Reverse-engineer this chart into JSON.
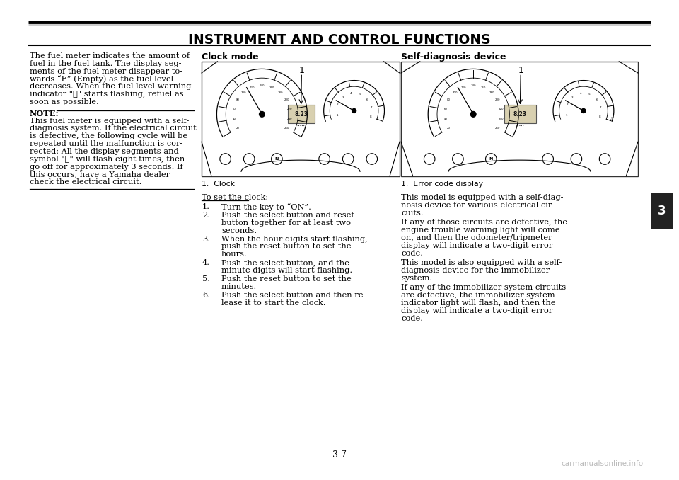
{
  "bg_color": "#ffffff",
  "title": "INSTRUMENT AND CONTROL FUNCTIONS",
  "page_number": "3-7",
  "chapter_number": "3",
  "left_lines_1": [
    "The fuel meter indicates the amount of",
    "fuel in the fuel tank. The display seg-",
    "ments of the fuel meter disappear to-",
    "wards “E” (Empty) as the fuel level",
    "decreases. When the fuel level warning",
    "indicator \"⛽\" starts flashing, refuel as",
    "soon as possible."
  ],
  "left_note_label": "NOTE:",
  "left_lines_2": [
    "This fuel meter is equipped with a self-",
    "diagnosis system. If the electrical circuit",
    "is defective, the following cycle will be",
    "repeated until the malfunction is cor-",
    "rected: All the display segments and",
    "symbol \"⛽\" will flash eight times, then",
    "go off for approximately 3 seconds. If",
    "this occurs, have a Yamaha dealer",
    "check the electrical circuit."
  ],
  "mid_col_header": "Clock mode",
  "mid_label": "1.  Clock",
  "mid_instructions_header": "To set the clock:",
  "mid_instructions": [
    [
      "Turn the key to “ON”."
    ],
    [
      "Push the select button and reset",
      "button together for at least two",
      "seconds."
    ],
    [
      "When the hour digits start flashing,",
      "push the reset button to set the",
      "hours."
    ],
    [
      "Push the select button, and the",
      "minute digits will start flashing."
    ],
    [
      "Push the reset button to set the",
      "minutes."
    ],
    [
      "Push the select button and then re-",
      "lease it to start the clock."
    ]
  ],
  "right_col_header": "Self-diagnosis device",
  "right_label": "1.  Error code display",
  "right_blocks": [
    [
      "This model is equipped with a self-diag-",
      "nosis device for various electrical cir-",
      "cuits."
    ],
    [
      "If any of those circuits are defective, the",
      "engine trouble warning light will come",
      "on, and then the odometer/tripmeter",
      "display will indicate a two-digit error",
      "code."
    ],
    [
      "This model is also equipped with a self-",
      "diagnosis device for the immobilizer",
      "system."
    ],
    [
      "If any of the immobilizer system circuits",
      "are defective, the immobilizer system",
      "indicator light will flash, and then the",
      "display will indicate a two-digit error",
      "code."
    ]
  ],
  "title_fontsize": 13.5,
  "body_fontsize": 8.2,
  "header_fontsize": 9.0,
  "label_fontsize": 7.8,
  "watermark": "carmanualsonline.info",
  "tab_color": "#222222",
  "tab_text_color": "#ffffff"
}
